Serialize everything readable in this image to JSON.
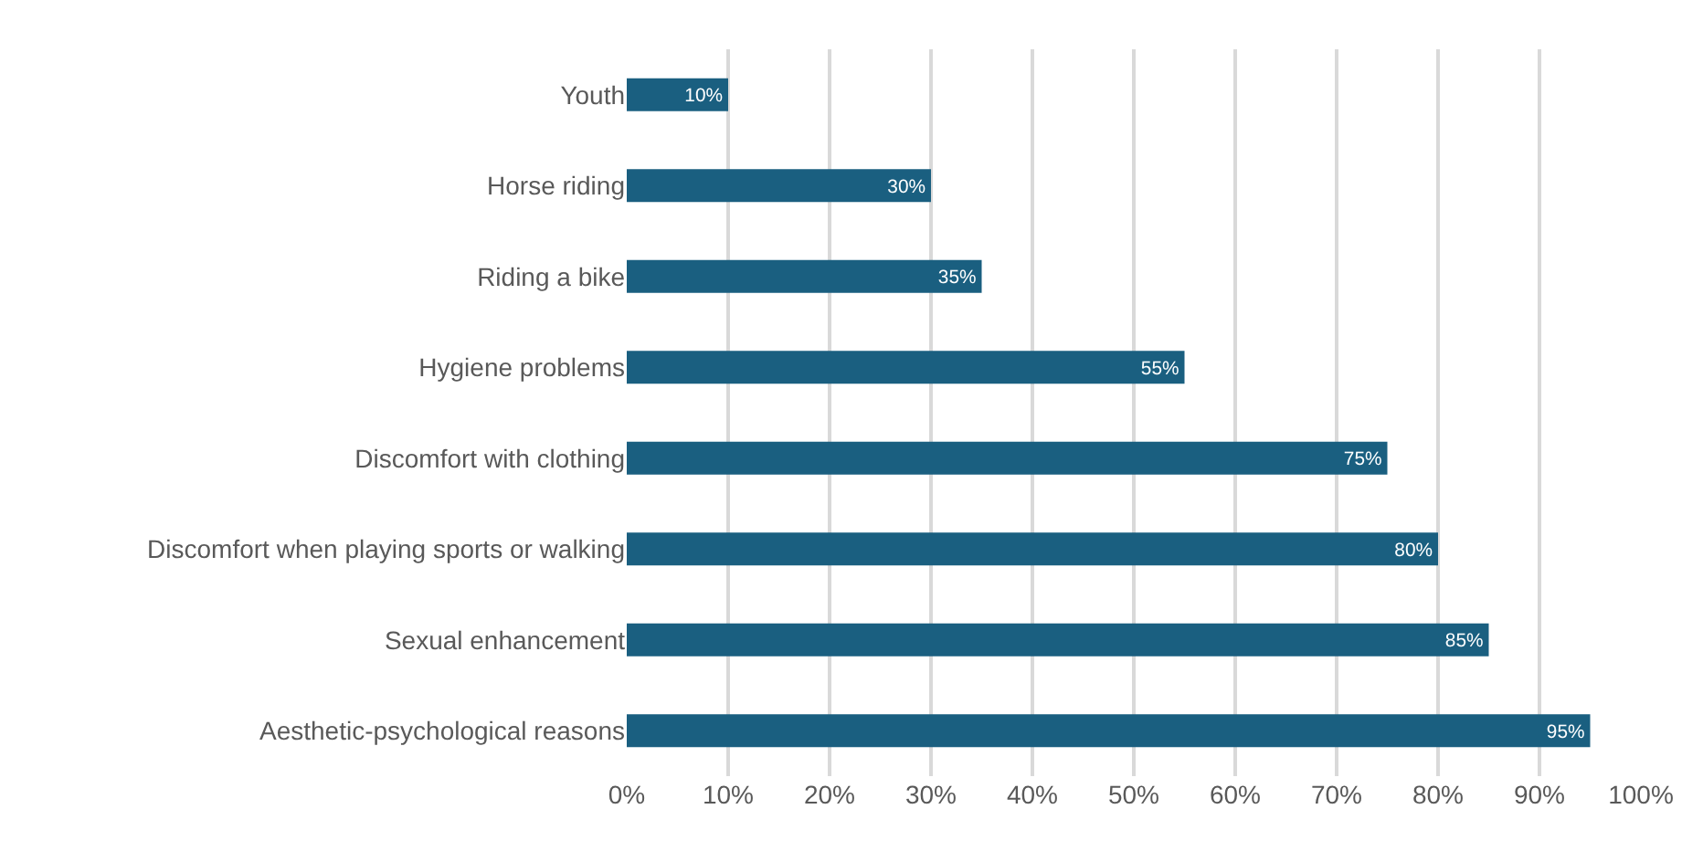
{
  "chart_data": {
    "type": "bar",
    "orientation": "horizontal",
    "categories": [
      "Youth",
      "Horse riding",
      "Riding a bike",
      "Hygiene problems",
      "Discomfort with clothing",
      "Discomfort when playing sports or walking",
      "Sexual enhancement",
      "Aesthetic-psychological reasons"
    ],
    "values": [
      10,
      30,
      35,
      55,
      75,
      80,
      85,
      95
    ],
    "value_labels": [
      "10%",
      "30%",
      "35%",
      "55%",
      "75%",
      "80%",
      "85%",
      "95%"
    ],
    "color": "#1a5f80",
    "xlim": [
      0,
      100
    ],
    "xticks": [
      {
        "value": 0,
        "label": "0%"
      },
      {
        "value": 10,
        "label": "10%"
      },
      {
        "value": 20,
        "label": "20%"
      },
      {
        "value": 30,
        "label": "30%"
      },
      {
        "value": 40,
        "label": "40%"
      },
      {
        "value": 50,
        "label": "50%"
      },
      {
        "value": 60,
        "label": "60%"
      },
      {
        "value": 70,
        "label": "70%"
      },
      {
        "value": 80,
        "label": "80%"
      },
      {
        "value": 90,
        "label": "90%"
      },
      {
        "value": 100,
        "label": "100%"
      }
    ],
    "grid": "x"
  }
}
